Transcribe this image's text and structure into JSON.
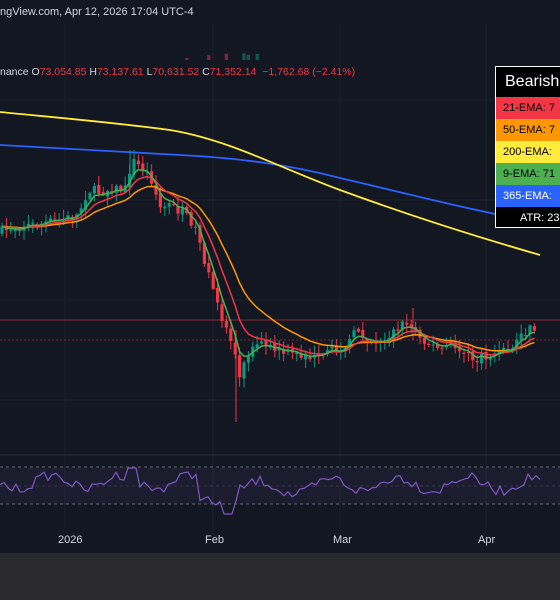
{
  "header": {
    "source_line": "ngView.com, Apr 12, 2026 17:04 UTC-4"
  },
  "ohlc": {
    "prefix": "nance",
    "open_label": "O",
    "open": "73,054.85",
    "high_label": "H",
    "high": "73,137.61",
    "low_label": "L",
    "low": "70,631.52",
    "close_label": "C",
    "close": "71,352.14",
    "change": "−1,762.68 (−2.41%)"
  },
  "legend": {
    "title": "Bearish",
    "rows": [
      {
        "label": "21-EMA: 7",
        "color": "#f23645"
      },
      {
        "label": "50-EMA: 7",
        "color": "#ff9800"
      },
      {
        "label": "200-EMA: ",
        "color": "#ffeb3b"
      },
      {
        "label": "9-EMA: 71",
        "color": "#4caf50"
      },
      {
        "label": "365-EMA: ",
        "color": "#2962ff"
      },
      {
        "label": "ATR: 23",
        "color": "#000000"
      }
    ]
  },
  "xaxis": {
    "labels": [
      "2026",
      "Feb",
      "Mar",
      "Apr"
    ]
  },
  "colors": {
    "up": "#089981",
    "down": "#f23645",
    "ema21": "#f23645",
    "ema50": "#ff9800",
    "ema200": "#ffeb3b",
    "ema9": "#4caf50",
    "ema365": "#2962ff",
    "rsi": "#7e57c2",
    "background": "#131722"
  }
}
